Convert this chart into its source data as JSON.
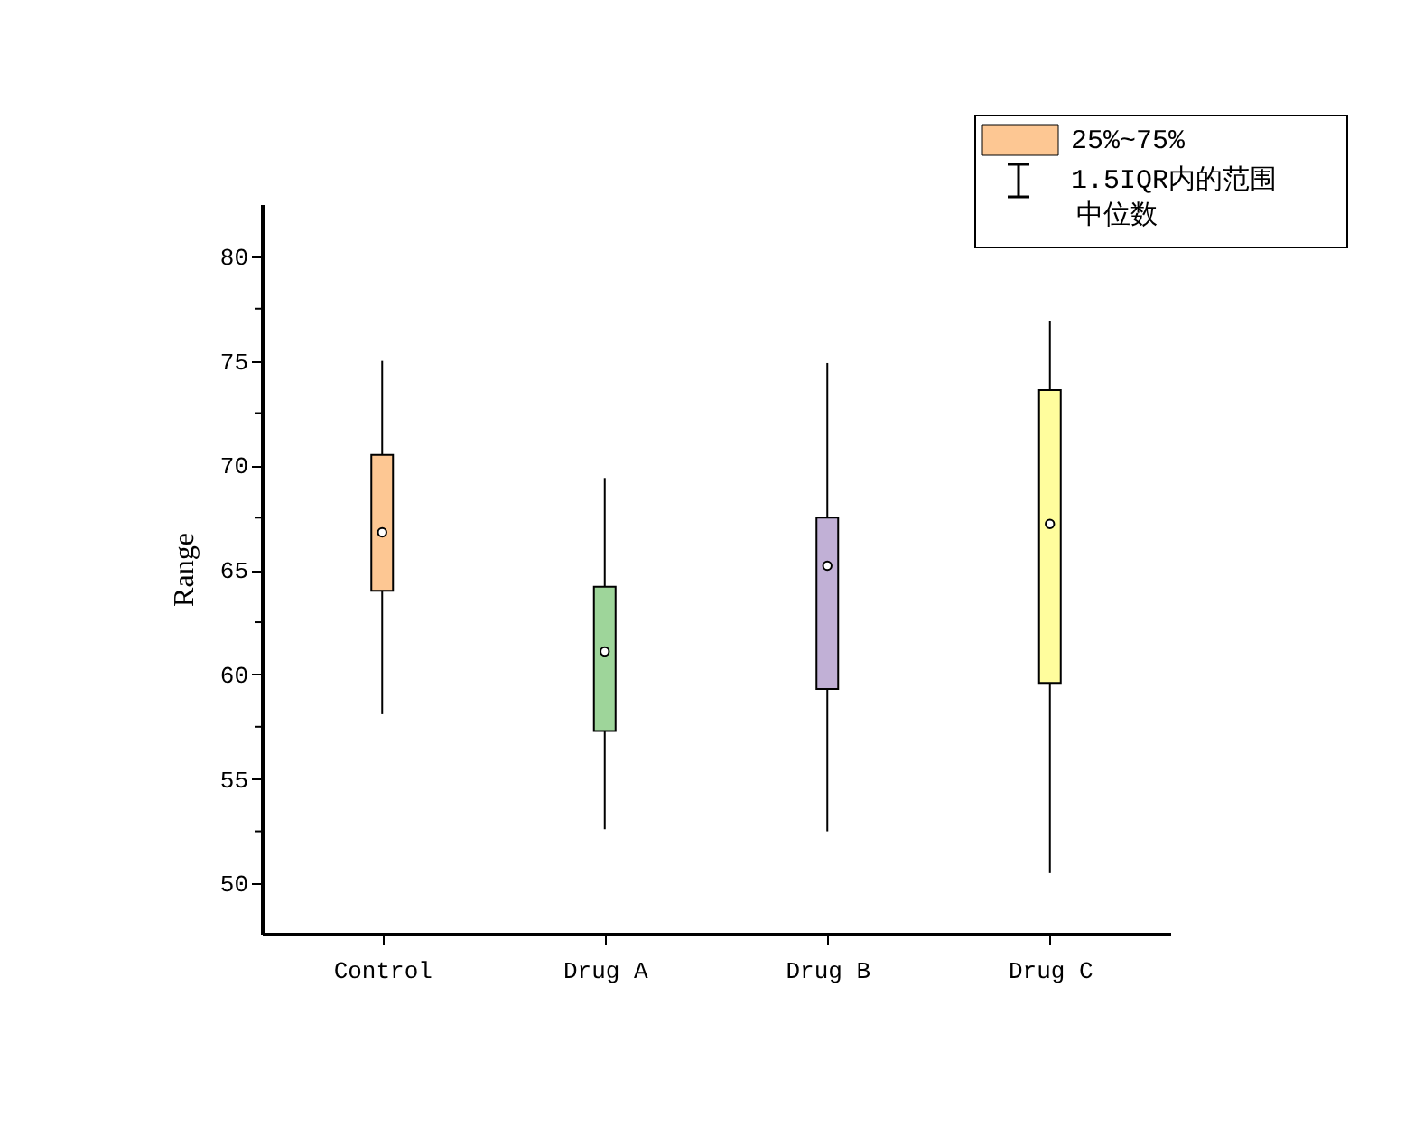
{
  "chart_data": {
    "type": "box",
    "ylabel": "Range",
    "categories": [
      "Control",
      "Drug A",
      "Drug B",
      "Drug C"
    ],
    "series": [
      {
        "name": "25%~75%",
        "color": "#fdc793",
        "colors": [
          "#fdc793",
          "#9ed59a",
          "#c1b0d6",
          "#fffd9d"
        ],
        "boxes": [
          {
            "low": 58.1,
            "q1": 64.0,
            "median": 66.8,
            "q3": 70.5,
            "high": 75.0
          },
          {
            "low": 52.6,
            "q1": 57.3,
            "median": 61.1,
            "q3": 64.2,
            "high": 69.4
          },
          {
            "low": 52.5,
            "q1": 59.3,
            "median": 65.2,
            "q3": 67.5,
            "high": 74.9
          },
          {
            "low": 50.5,
            "q1": 59.6,
            "median": 67.2,
            "q3": 73.6,
            "high": 76.9
          }
        ]
      }
    ],
    "annotations": [
      "1.5IQR内的范围",
      "中位数"
    ],
    "ylim": [
      47.6,
      82.5
    ],
    "yticks": [
      50,
      {
        "value": 52.5,
        "label": null
      },
      55,
      {
        "value": 57.5,
        "label": null
      },
      60,
      {
        "value": 62.5,
        "label": null
      },
      65,
      {
        "value": 67.5,
        "label": null
      },
      70,
      {
        "value": 72.5,
        "label": null
      },
      75,
      {
        "value": 77.5,
        "label": null
      },
      80
    ],
    "grid": false,
    "legend": "top right",
    "marker": "circle"
  }
}
